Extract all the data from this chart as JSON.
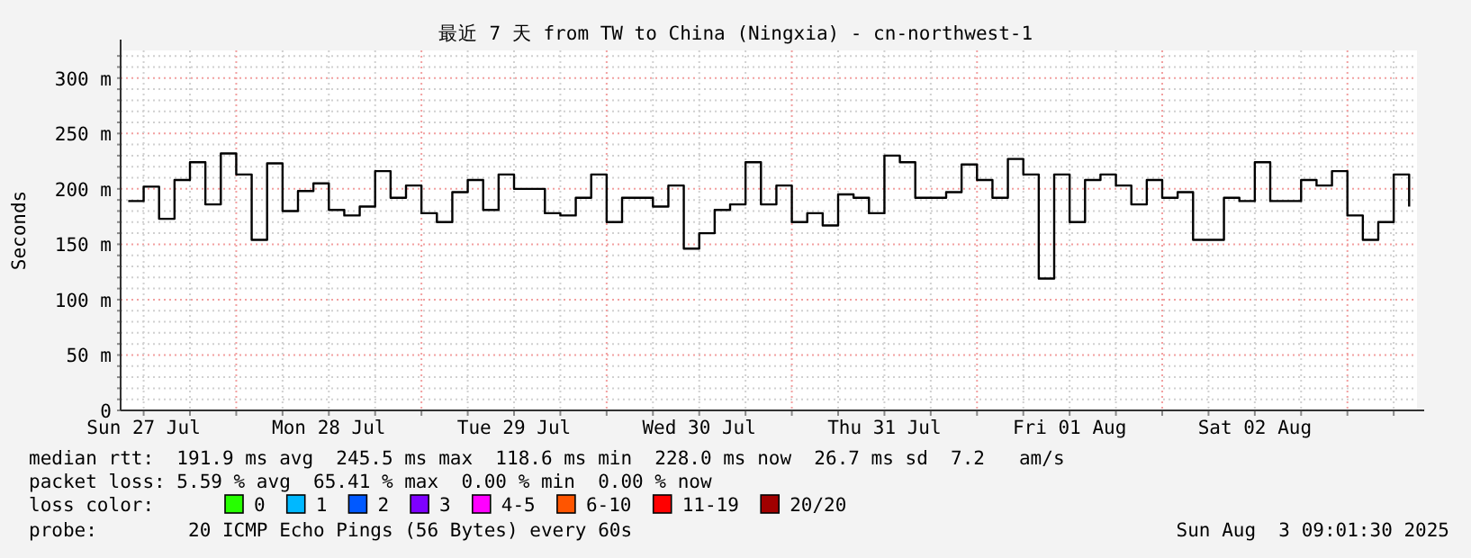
{
  "chart_data": {
    "type": "step",
    "title": "最近 7 天 from TW to China (Ningxia) - cn-northwest-1",
    "ylabel": "Seconds",
    "x": [
      "2025-07-27T10:00",
      "2025-07-27T12:00",
      "2025-07-27T14:00",
      "2025-07-27T16:00",
      "2025-07-27T18:00",
      "2025-07-27T20:00",
      "2025-07-27T22:00",
      "2025-07-28T00:00",
      "2025-07-28T02:00",
      "2025-07-28T04:00",
      "2025-07-28T06:00",
      "2025-07-28T08:00",
      "2025-07-28T10:00",
      "2025-07-28T12:00",
      "2025-07-28T14:00",
      "2025-07-28T16:00",
      "2025-07-28T18:00",
      "2025-07-28T20:00",
      "2025-07-28T22:00",
      "2025-07-29T00:00",
      "2025-07-29T02:00",
      "2025-07-29T04:00",
      "2025-07-29T06:00",
      "2025-07-29T08:00",
      "2025-07-29T10:00",
      "2025-07-29T12:00",
      "2025-07-29T14:00",
      "2025-07-29T16:00",
      "2025-07-29T18:00",
      "2025-07-29T20:00",
      "2025-07-29T22:00",
      "2025-07-30T00:00",
      "2025-07-30T02:00",
      "2025-07-30T04:00",
      "2025-07-30T06:00",
      "2025-07-30T08:00",
      "2025-07-30T10:00",
      "2025-07-30T12:00",
      "2025-07-30T14:00",
      "2025-07-30T16:00",
      "2025-07-30T18:00",
      "2025-07-30T20:00",
      "2025-07-30T22:00",
      "2025-07-31T00:00",
      "2025-07-31T02:00",
      "2025-07-31T04:00",
      "2025-07-31T06:00",
      "2025-07-31T08:00",
      "2025-07-31T10:00",
      "2025-07-31T12:00",
      "2025-07-31T14:00",
      "2025-07-31T16:00",
      "2025-07-31T18:00",
      "2025-07-31T20:00",
      "2025-07-31T22:00",
      "2025-08-01T00:00",
      "2025-08-01T02:00",
      "2025-08-01T04:00",
      "2025-08-01T06:00",
      "2025-08-01T08:00",
      "2025-08-01T10:00",
      "2025-08-01T12:00",
      "2025-08-01T14:00",
      "2025-08-01T16:00",
      "2025-08-01T18:00",
      "2025-08-01T20:00",
      "2025-08-01T22:00",
      "2025-08-02T00:00",
      "2025-08-02T02:00",
      "2025-08-02T04:00",
      "2025-08-02T06:00",
      "2025-08-02T08:00",
      "2025-08-02T10:00",
      "2025-08-02T12:00",
      "2025-08-02T14:00",
      "2025-08-02T16:00",
      "2025-08-02T18:00",
      "2025-08-02T20:00",
      "2025-08-02T22:00",
      "2025-08-03T00:00",
      "2025-08-03T02:00",
      "2025-08-03T04:00",
      "2025-08-03T06:00",
      "2025-08-03T08:00"
    ],
    "series": [
      {
        "color": "#000000",
        "values": [
          189,
          202,
          173,
          208,
          224,
          186,
          232,
          213,
          154,
          223,
          180,
          198,
          205,
          181,
          176,
          184,
          216,
          192,
          203,
          178,
          170,
          197,
          208,
          181,
          213,
          200,
          200,
          178,
          176,
          192,
          213,
          170,
          192,
          192,
          184,
          203,
          146,
          160,
          181,
          186,
          224,
          186,
          203,
          170,
          178,
          167,
          195,
          192,
          178,
          230,
          224,
          192,
          192,
          197,
          222,
          208,
          192,
          227,
          213,
          119,
          213,
          170,
          208,
          213,
          203,
          186,
          208,
          192,
          197,
          154,
          154,
          192,
          189,
          224,
          189,
          189,
          208,
          203,
          216,
          176,
          154,
          170,
          213,
          184
        ]
      },
      {
        "name": "0",
        "color": "#26ff00",
        "values": [
          null,
          null,
          null,
          null,
          null,
          null,
          null,
          null,
          null,
          null,
          null,
          null,
          null,
          null,
          null,
          null,
          null,
          null,
          null,
          null,
          null,
          null,
          null,
          null,
          null,
          null,
          null,
          null,
          null,
          null,
          null,
          null,
          null,
          null,
          null,
          null,
          null,
          null,
          null,
          null,
          null,
          null,
          null,
          null,
          null,
          null,
          null,
          null,
          null,
          null,
          null,
          null,
          null,
          null,
          null,
          null,
          null,
          null,
          null,
          null,
          null,
          null,
          null,
          null,
          null,
          null,
          null,
          null,
          null,
          null,
          null,
          null,
          null,
          null,
          null,
          null,
          null,
          null,
          null,
          null,
          null,
          null,
          null,
          null
        ]
      },
      {
        "name": "1",
        "color": "#00b8ff",
        "values": [
          null,
          null,
          null,
          null,
          null,
          null,
          null,
          null,
          null,
          null,
          null,
          null,
          null,
          null,
          null,
          null,
          null,
          null,
          null,
          null,
          null,
          null,
          null,
          null,
          null,
          null,
          null,
          null,
          null,
          null,
          null,
          null,
          null,
          null,
          null,
          null,
          null,
          null,
          null,
          null,
          null,
          null,
          null,
          null,
          null,
          null,
          null,
          null,
          null,
          null,
          null,
          null,
          null,
          null,
          null,
          null,
          null,
          null,
          null,
          null,
          null,
          null,
          null,
          null,
          null,
          null,
          null,
          null,
          null,
          null,
          null,
          null,
          null,
          null,
          null,
          null,
          null,
          null,
          null,
          null,
          null,
          null,
          null,
          null
        ]
      },
      {
        "name": "2",
        "color": "#0059ff",
        "values": [
          null,
          null,
          null,
          null,
          null,
          null,
          null,
          null,
          null,
          null,
          null,
          null,
          null,
          null,
          null,
          null,
          null,
          null,
          null,
          null,
          null,
          null,
          null,
          null,
          null,
          null,
          null,
          null,
          null,
          null,
          null,
          null,
          null,
          null,
          null,
          null,
          null,
          null,
          null,
          null,
          null,
          null,
          null,
          null,
          null,
          null,
          null,
          null,
          null,
          null,
          null,
          null,
          null,
          null,
          null,
          null,
          null,
          null,
          null,
          null,
          null,
          null,
          null,
          null,
          null,
          null,
          null,
          null,
          null,
          null,
          null,
          null,
          null,
          null,
          null,
          null,
          null,
          null,
          null,
          null,
          null,
          null,
          null,
          null
        ]
      },
      {
        "name": "3",
        "color": "#7e00ff",
        "values": [
          null,
          null,
          null,
          null,
          null,
          null,
          null,
          null,
          null,
          null,
          null,
          null,
          null,
          null,
          null,
          null,
          null,
          null,
          null,
          null,
          null,
          null,
          null,
          null,
          null,
          null,
          null,
          null,
          null,
          null,
          null,
          null,
          null,
          null,
          null,
          null,
          null,
          null,
          null,
          null,
          null,
          null,
          null,
          null,
          null,
          null,
          null,
          null,
          null,
          null,
          null,
          null,
          null,
          null,
          null,
          null,
          null,
          null,
          null,
          null,
          null,
          null,
          null,
          null,
          null,
          null,
          null,
          null,
          null,
          null,
          null,
          null,
          null,
          null,
          null,
          null,
          null,
          null,
          null,
          null,
          null,
          null,
          null,
          null
        ]
      },
      {
        "name": "4-5",
        "color": "#ff00ff",
        "values": [
          null,
          null,
          null,
          null,
          null,
          null,
          null,
          null,
          null,
          null,
          null,
          null,
          null,
          null,
          null,
          null,
          null,
          null,
          null,
          null,
          null,
          null,
          null,
          null,
          null,
          null,
          null,
          null,
          null,
          null,
          null,
          null,
          null,
          null,
          null,
          null,
          null,
          null,
          null,
          null,
          null,
          null,
          null,
          null,
          null,
          null,
          null,
          null,
          null,
          null,
          null,
          null,
          null,
          null,
          null,
          null,
          null,
          null,
          null,
          null,
          null,
          null,
          null,
          null,
          null,
          null,
          null,
          null,
          null,
          null,
          null,
          null,
          null,
          null,
          null,
          null,
          null,
          null,
          null,
          null,
          null,
          null,
          null,
          null
        ]
      },
      {
        "name": "6-10",
        "color": "#ff5500",
        "values": [
          null,
          null,
          null,
          null,
          null,
          null,
          null,
          null,
          null,
          null,
          null,
          null,
          null,
          null,
          null,
          null,
          null,
          null,
          null,
          null,
          null,
          null,
          null,
          null,
          null,
          null,
          null,
          null,
          null,
          null,
          null,
          null,
          null,
          null,
          null,
          null,
          null,
          null,
          null,
          null,
          null,
          null,
          null,
          null,
          null,
          null,
          null,
          null,
          null,
          null,
          null,
          null,
          null,
          null,
          null,
          null,
          null,
          null,
          null,
          null,
          null,
          null,
          null,
          null,
          null,
          null,
          null,
          null,
          null,
          null,
          null,
          null,
          null,
          null,
          null,
          null,
          null,
          null,
          null,
          null,
          null,
          null,
          null,
          null
        ]
      },
      {
        "name": "11-19",
        "color": "#ff0000",
        "values": [
          null,
          null,
          null,
          null,
          null,
          null,
          null,
          null,
          null,
          null,
          null,
          null,
          null,
          null,
          null,
          null,
          null,
          null,
          null,
          null,
          null,
          null,
          null,
          null,
          null,
          null,
          null,
          null,
          null,
          null,
          null,
          null,
          null,
          null,
          null,
          null,
          null,
          null,
          null,
          null,
          null,
          null,
          null,
          null,
          null,
          null,
          null,
          null,
          null,
          null,
          null,
          null,
          null,
          null,
          null,
          null,
          null,
          null,
          null,
          null,
          null,
          null,
          null,
          null,
          null,
          null,
          null,
          null,
          null,
          null,
          null,
          null,
          null,
          null,
          null,
          null,
          null,
          null,
          null,
          null,
          null,
          null,
          null,
          null
        ]
      },
      {
        "name": "20/20",
        "color": "#a10000",
        "values": [
          null,
          null,
          null,
          null,
          null,
          null,
          null,
          null,
          null,
          null,
          null,
          null,
          null,
          null,
          null,
          null,
          null,
          null,
          null,
          null,
          null,
          null,
          null,
          null,
          null,
          null,
          null,
          null,
          null,
          null,
          null,
          null,
          null,
          null,
          null,
          null,
          null,
          null,
          null,
          null,
          null,
          null,
          null,
          null,
          null,
          null,
          null,
          null,
          null,
          null,
          null,
          null,
          null,
          null,
          null,
          null,
          null,
          null,
          null,
          null,
          null,
          null,
          null,
          null,
          null,
          null,
          null,
          null,
          null,
          null,
          null,
          null,
          null,
          null,
          null,
          null,
          null,
          null,
          null,
          null,
          null,
          null,
          null,
          null
        ]
      }
    ],
    "xlim": [
      "2025-07-27T09:01",
      "2025-08-03T09:01"
    ],
    "xticks": [
      {
        "value": "2025-07-27T12:00",
        "label": "Sun 27 Jul"
      },
      {
        "value": "2025-07-27T18:00",
        "label": null
      },
      {
        "value": "2025-07-28T00:00",
        "label": null
      },
      {
        "value": "2025-07-28T06:00",
        "label": null
      },
      {
        "value": "2025-07-28T12:00",
        "label": "Mon 28 Jul"
      },
      {
        "value": "2025-07-28T18:00",
        "label": null
      },
      {
        "value": "2025-07-29T00:00",
        "label": null
      },
      {
        "value": "2025-07-29T06:00",
        "label": null
      },
      {
        "value": "2025-07-29T12:00",
        "label": "Tue 29 Jul"
      },
      {
        "value": "2025-07-29T18:00",
        "label": null
      },
      {
        "value": "2025-07-30T00:00",
        "label": null
      },
      {
        "value": "2025-07-30T06:00",
        "label": null
      },
      {
        "value": "2025-07-30T12:00",
        "label": "Wed 30 Jul"
      },
      {
        "value": "2025-07-30T18:00",
        "label": null
      },
      {
        "value": "2025-07-31T00:00",
        "label": null
      },
      {
        "value": "2025-07-31T06:00",
        "label": null
      },
      {
        "value": "2025-07-31T12:00",
        "label": "Thu 31 Jul"
      },
      {
        "value": "2025-07-31T18:00",
        "label": null
      },
      {
        "value": "2025-08-01T00:00",
        "label": null
      },
      {
        "value": "2025-08-01T06:00",
        "label": null
      },
      {
        "value": "2025-08-01T12:00",
        "label": "Fri 01 Aug"
      },
      {
        "value": "2025-08-01T18:00",
        "label": null
      },
      {
        "value": "2025-08-02T00:00",
        "label": null
      },
      {
        "value": "2025-08-02T06:00",
        "label": null
      },
      {
        "value": "2025-08-02T12:00",
        "label": "Sat 02 Aug"
      },
      {
        "value": "2025-08-02T18:00",
        "label": null
      },
      {
        "value": "2025-08-03T00:00",
        "label": null
      },
      {
        "value": "2025-08-03T06:00",
        "label": null
      }
    ],
    "ylim": [
      0,
      325
    ],
    "yticks": [
      {
        "value": 0,
        "label": "0"
      },
      {
        "value": 10,
        "label": null
      },
      {
        "value": 20,
        "label": null
      },
      {
        "value": 30,
        "label": null
      },
      {
        "value": 40,
        "label": null
      },
      {
        "value": 50,
        "label": "50 m"
      },
      {
        "value": 60,
        "label": null
      },
      {
        "value": 70,
        "label": null
      },
      {
        "value": 80,
        "label": null
      },
      {
        "value": 90,
        "label": null
      },
      {
        "value": 100,
        "label": "100 m"
      },
      {
        "value": 110,
        "label": null
      },
      {
        "value": 120,
        "label": null
      },
      {
        "value": 130,
        "label": null
      },
      {
        "value": 140,
        "label": null
      },
      {
        "value": 150,
        "label": "150 m"
      },
      {
        "value": 160,
        "label": null
      },
      {
        "value": 170,
        "label": null
      },
      {
        "value": 180,
        "label": null
      },
      {
        "value": 190,
        "label": null
      },
      {
        "value": 200,
        "label": "200 m"
      },
      {
        "value": 210,
        "label": null
      },
      {
        "value": 220,
        "label": null
      },
      {
        "value": 230,
        "label": null
      },
      {
        "value": 240,
        "label": null
      },
      {
        "value": 250,
        "label": "250 m"
      },
      {
        "value": 260,
        "label": null
      },
      {
        "value": 270,
        "label": null
      },
      {
        "value": 280,
        "label": null
      },
      {
        "value": 290,
        "label": null
      },
      {
        "value": 300,
        "label": "300 m"
      },
      {
        "value": 310,
        "label": null
      },
      {
        "value": 320,
        "label": null
      }
    ],
    "grid": true,
    "legend": "bottom",
    "annotations": [
      "median rtt:  191.9 ms avg  245.5 ms max  118.6 ms min  228.0 ms now  26.7 ms sd  7.2   am/s",
      "packet loss: 5.59 % avg  65.41 % max  0.00 % min  0.00 % now",
      "loss color:",
      "probe:        20 ICMP Echo Pings (56 Bytes) every 60s",
      "Sun Aug  3 09:01:30 2025"
    ]
  }
}
